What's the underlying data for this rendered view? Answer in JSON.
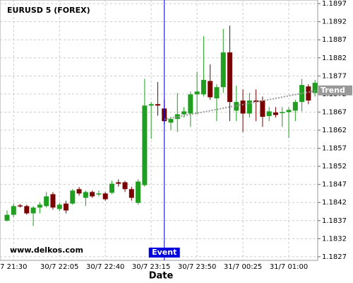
{
  "chart_data": {
    "type": "candlestick",
    "title": "EURUSD 5 (FOREX)",
    "watermark": "www.delkos.com",
    "x_label": "Date",
    "categories": [
      null,
      "7 21:30",
      null,
      null,
      null,
      null,
      null,
      null,
      "30/7 22:05",
      null,
      null,
      null,
      null,
      null,
      null,
      "30/7 22:40",
      null,
      null,
      null,
      null,
      null,
      null,
      "30/7 23:15",
      null,
      null,
      null,
      null,
      null,
      null,
      "30/7 23:50",
      null,
      null,
      null,
      null,
      null,
      null,
      "31/7 00:25",
      null,
      null,
      null,
      null,
      null,
      null,
      "31/7 01:00",
      null,
      null,
      null,
      null
    ],
    "open": [
      1.1837,
      1.18386,
      1.18412,
      1.1841,
      1.1839,
      1.18406,
      1.1841,
      1.18443,
      1.18402,
      1.18417,
      1.18417,
      1.18457,
      1.18433,
      1.18449,
      1.18445,
      1.18445,
      1.18447,
      1.18476,
      1.18476,
      1.18457,
      1.18419,
      1.18468,
      1.18688,
      1.18692,
      1.1868,
      1.18641,
      1.18651,
      1.18664,
      1.18666,
      1.18719,
      1.18719,
      1.18756,
      1.18708,
      1.18739,
      1.18835,
      1.18674,
      1.18702,
      1.18666,
      1.18702,
      1.18702,
      1.18659,
      1.18669,
      1.1867,
      1.1867,
      1.18674,
      1.18698,
      1.18741,
      1.18723
    ],
    "high": [
      1.18398,
      1.18417,
      1.18416,
      1.18414,
      1.1841,
      1.18421,
      1.18449,
      1.18449,
      1.18419,
      1.18425,
      1.18457,
      1.18463,
      1.18453,
      1.18453,
      1.18453,
      1.18449,
      1.1848,
      1.18484,
      1.1848,
      1.18464,
      1.18484,
      1.18762,
      1.18698,
      1.18753,
      1.18704,
      1.18657,
      1.18723,
      1.18684,
      1.18727,
      1.18782,
      1.1888,
      1.18802,
      1.18747,
      1.189,
      1.18909,
      1.18743,
      1.18733,
      1.18723,
      1.18733,
      1.18713,
      1.18684,
      1.18684,
      1.18684,
      1.18684,
      1.18704,
      1.18762,
      1.18747,
      1.18759
    ],
    "low": [
      1.18367,
      1.1838,
      1.18406,
      1.18386,
      1.18355,
      1.1839,
      1.18406,
      1.184,
      1.18396,
      1.1839,
      1.18414,
      1.18439,
      1.1841,
      1.18433,
      1.18437,
      1.18425,
      1.18443,
      1.18464,
      1.18449,
      1.18425,
      1.18414,
      1.18464,
      1.18596,
      1.1866,
      1.18637,
      1.18621,
      1.18615,
      1.18655,
      1.18629,
      1.18664,
      1.18713,
      1.18704,
      1.18645,
      1.18723,
      1.18645,
      1.18645,
      1.18615,
      1.18655,
      1.18645,
      1.18629,
      1.18645,
      1.18655,
      1.18629,
      1.18598,
      1.18645,
      1.18672,
      1.18692,
      1.18713
    ],
    "close": [
      1.18386,
      1.1841,
      1.1841,
      1.1839,
      1.18406,
      1.18414,
      1.18437,
      1.18406,
      1.18414,
      1.18398,
      1.18453,
      1.18445,
      1.18449,
      1.18437,
      1.18445,
      1.18429,
      1.18472,
      1.18472,
      1.18457,
      1.18433,
      1.18478,
      1.18688,
      1.18692,
      1.18688,
      1.18645,
      1.18651,
      1.18664,
      1.18672,
      1.18719,
      1.18727,
      1.18759,
      1.18711,
      1.18739,
      1.18835,
      1.18698,
      1.18698,
      1.18666,
      1.18702,
      1.18698,
      1.18657,
      1.18672,
      1.18662,
      1.1867,
      1.18676,
      1.18698,
      1.18745,
      1.18702,
      1.18751
    ],
    "up_color": "#1f9e1f",
    "down_color": "#7a0000",
    "ylim": [
      1.1826,
      1.1898
    ],
    "yticks": [
      1.1827,
      1.1832,
      1.1837,
      1.1842,
      1.1847,
      1.1852,
      1.1857,
      1.1862,
      1.1867,
      1.1872,
      1.1877,
      1.1882,
      1.1887,
      1.1892,
      1.1897
    ],
    "grid": true,
    "trend": {
      "label": "Trend",
      "from": {
        "x": 24,
        "y": 1.1865
      },
      "to": {
        "x": 48,
        "y": 1.1873
      },
      "color": "#999999"
    },
    "event": {
      "label": "Event",
      "x": 24,
      "color": "#0000dd"
    }
  }
}
